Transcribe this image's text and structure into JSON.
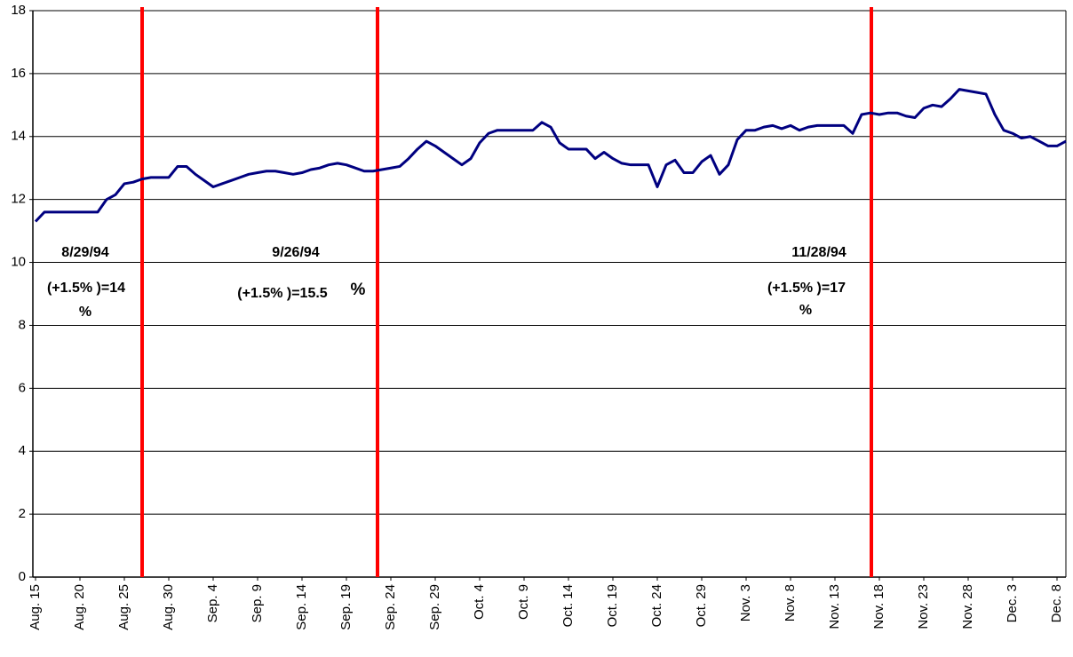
{
  "chart_data": {
    "type": "line",
    "categories": [
      "Aug. 15",
      null,
      null,
      null,
      null,
      "Aug. 20",
      null,
      null,
      null,
      null,
      "Aug. 25",
      null,
      null,
      null,
      null,
      "Aug. 30",
      null,
      null,
      null,
      null,
      "Sep. 4",
      null,
      null,
      null,
      null,
      "Sep. 9",
      null,
      null,
      null,
      null,
      "Sep. 14",
      null,
      null,
      null,
      null,
      "Sep. 19",
      null,
      null,
      null,
      null,
      "Sep. 24",
      null,
      null,
      null,
      null,
      "Sep. 29",
      null,
      null,
      null,
      null,
      "Oct. 4",
      null,
      null,
      null,
      null,
      "Oct. 9",
      null,
      null,
      null,
      null,
      "Oct. 14",
      null,
      null,
      null,
      null,
      "Oct. 19",
      null,
      null,
      null,
      null,
      "Oct. 24",
      null,
      null,
      null,
      null,
      "Oct. 29",
      null,
      null,
      null,
      null,
      "Nov. 3",
      null,
      null,
      null,
      null,
      "Nov. 8",
      null,
      null,
      null,
      null,
      "Nov. 13",
      null,
      null,
      null,
      null,
      "Nov. 18",
      null,
      null,
      null,
      null,
      "Nov. 23",
      null,
      null,
      null,
      null,
      "Nov. 28",
      null,
      null,
      null,
      null,
      "Dec. 3",
      null,
      null,
      null,
      null,
      "Dec. 8",
      null
    ],
    "values": [
      11.3,
      11.6,
      11.6,
      11.6,
      11.6,
      11.6,
      11.6,
      11.6,
      12.0,
      12.15,
      12.5,
      12.55,
      12.65,
      12.7,
      12.7,
      12.7,
      13.05,
      13.05,
      12.8,
      12.6,
      12.4,
      12.5,
      12.6,
      12.7,
      12.8,
      12.85,
      12.9,
      12.9,
      12.85,
      12.8,
      12.85,
      12.95,
      13.0,
      13.1,
      13.15,
      13.1,
      13.0,
      12.9,
      12.9,
      12.95,
      13.0,
      13.05,
      13.3,
      13.6,
      13.85,
      13.7,
      13.5,
      13.3,
      13.1,
      13.3,
      13.8,
      14.1,
      14.2,
      14.2,
      14.2,
      14.2,
      14.2,
      14.45,
      14.3,
      13.8,
      13.6,
      13.6,
      13.6,
      13.3,
      13.5,
      13.3,
      13.15,
      13.1,
      13.1,
      13.1,
      12.4,
      13.1,
      13.25,
      12.85,
      12.85,
      13.2,
      13.4,
      12.8,
      13.1,
      13.9,
      14.2,
      14.2,
      14.3,
      14.35,
      14.25,
      14.35,
      14.2,
      14.3,
      14.35,
      14.35,
      14.35,
      14.35,
      14.1,
      14.7,
      14.75,
      14.7,
      14.75,
      14.75,
      14.65,
      14.6,
      14.9,
      15.0,
      14.95,
      15.2,
      15.5,
      15.45,
      15.4,
      15.35,
      14.7,
      14.2,
      14.1,
      13.95,
      14.0,
      13.85,
      13.7,
      13.7,
      13.85
    ],
    "color": "#000080",
    "ylim": [
      0,
      18
    ],
    "yticks": [
      0,
      2,
      4,
      6,
      8,
      10,
      12,
      14,
      16,
      18
    ],
    "grid": true,
    "annotations": [
      {
        "date": "8/29/94",
        "text": "(+1.5% )=14",
        "unit": "%"
      },
      {
        "date": "9/26/94",
        "text": "(+1.5% )=15.5",
        "unit": "%"
      },
      {
        "date": "11/28/94",
        "text": "(+1.5% )=17",
        "unit": "%"
      }
    ]
  }
}
